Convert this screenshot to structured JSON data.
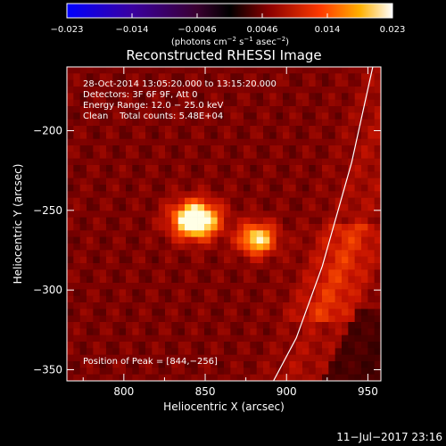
{
  "chart_data": {
    "type": "heatmap",
    "title": "Reconstructed RHESSI Image",
    "xlabel": "Heliocentric X (arcsec)",
    "ylabel": "Heliocentric Y (arcsec)",
    "xlim": [
      765,
      958
    ],
    "ylim": [
      -357,
      -160
    ],
    "xticks": [
      800,
      850,
      900,
      950
    ],
    "yticks": [
      -350,
      -300,
      -250,
      -200
    ],
    "colorbar": {
      "min": -0.023,
      "max": 0.023,
      "ticks": [
        "−0.023",
        "−0.014",
        "−0.0046",
        "0.0046",
        "0.014",
        "0.023"
      ],
      "unit_parts": [
        "(photons cm",
        "−2",
        " s",
        "−1",
        " asec",
        "−2",
        ")"
      ],
      "colormap": "std-gamma-II / hot"
    },
    "annotations": [
      "28-Oct-2014 13:05:20.000 to 13:15:20.000",
      "Detectors: 3F 6F 9F, Att 0",
      "Energy Range: 12.0 − 25.0 keV",
      "Clean    Total counts: 5.48E+04"
    ],
    "peak_label": "Position of Peak = [844,−256]",
    "sources": [
      {
        "x": 844,
        "y": -256,
        "peak": 0.023,
        "sx": 10,
        "sy": 8
      },
      {
        "x": 882,
        "y": -268,
        "peak": 0.016,
        "sx": 8,
        "sy": 7
      }
    ],
    "background_level": 0.008,
    "limb": {
      "points": [
        [
          953,
          -160
        ],
        [
          940,
          -220
        ],
        [
          922,
          -285
        ],
        [
          906,
          -330
        ],
        [
          892,
          -357
        ]
      ]
    },
    "footer": "11−Jul−2017 23:16"
  }
}
